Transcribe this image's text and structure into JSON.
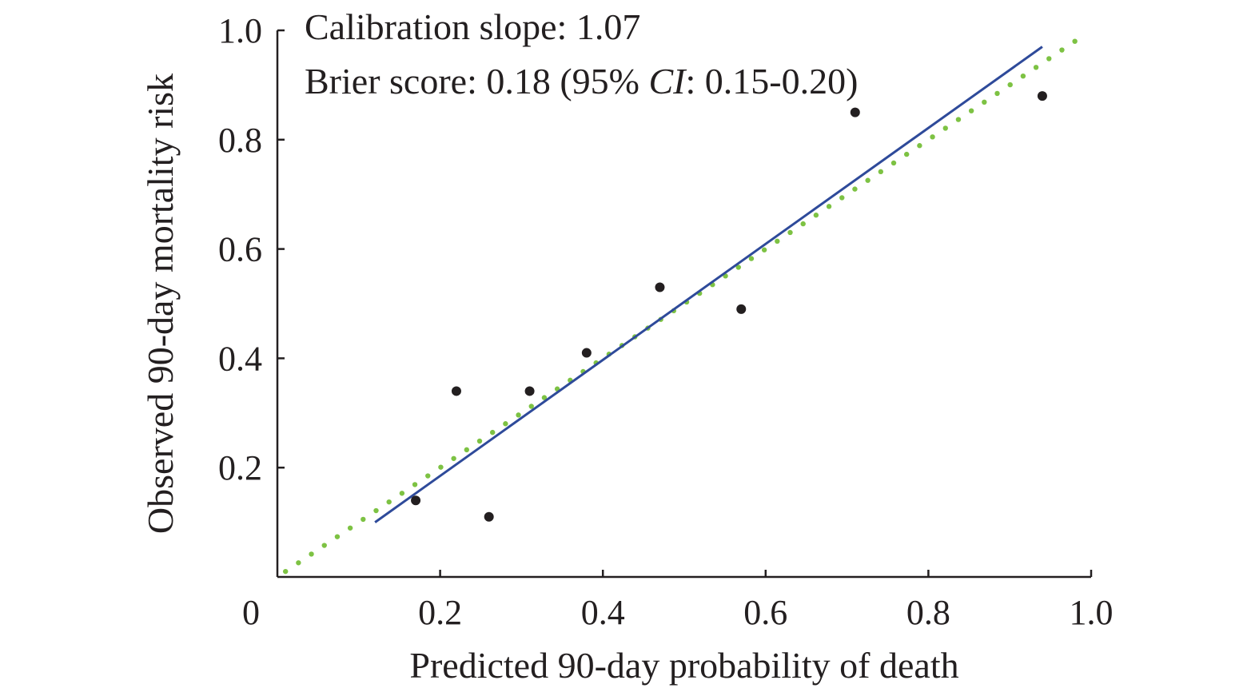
{
  "chart_data": {
    "type": "scatter",
    "xlabel": "Predicted 90-day probability of death",
    "ylabel": "Observed 90-day mortality risk",
    "xlim": [
      0,
      1.0
    ],
    "ylim": [
      0,
      1.0
    ],
    "x_ticks": [
      0.2,
      0.4,
      0.6,
      0.8,
      1.0
    ],
    "x_tick_labels": [
      "0.2",
      "0.4",
      "0.6",
      "0.8",
      "1.0"
    ],
    "y_ticks": [
      0.2,
      0.4,
      0.6,
      0.8,
      1.0
    ],
    "y_tick_labels": [
      "0.2",
      "0.4",
      "0.6",
      "0.8",
      "1.0"
    ],
    "origin_label": "0",
    "grid": false,
    "annotations": {
      "line1": "Calibration slope: 1.07",
      "line2_prefix": "Brier score: 0.18 (95% ",
      "line2_italic": "CI",
      "line2_suffix": ": 0.15-0.20)"
    },
    "points": {
      "color": "#231f20",
      "x": [
        0.17,
        0.22,
        0.26,
        0.31,
        0.38,
        0.47,
        0.57,
        0.71,
        0.94
      ],
      "y": [
        0.14,
        0.34,
        0.11,
        0.34,
        0.41,
        0.53,
        0.49,
        0.85,
        0.88
      ]
    },
    "fitted_line": {
      "color": "#2e4a9a",
      "style": "solid",
      "x": [
        0.12,
        0.94
      ],
      "y": [
        0.1,
        0.97
      ]
    },
    "reference_line": {
      "color": "#7dc243",
      "style": "dotted",
      "x": [
        0.01,
        0.98
      ],
      "y": [
        0.01,
        0.98
      ]
    }
  }
}
